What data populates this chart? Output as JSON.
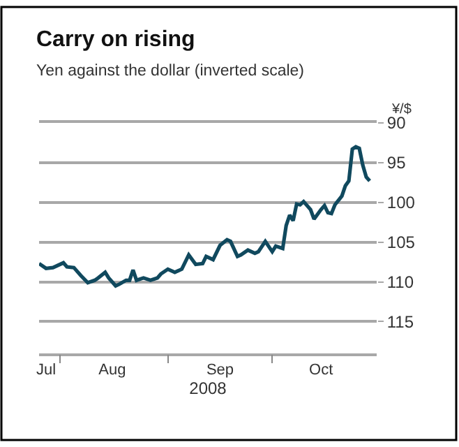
{
  "chart_data": {
    "type": "line",
    "title": "Carry on rising",
    "subtitle": "Yen against the dollar (inverted scale)",
    "xlabel": "2008",
    "ylabel": "¥/$",
    "x": [
      "2008-07-26",
      "2008-07-28",
      "2008-07-30",
      "2008-08-02",
      "2008-08-03",
      "2008-08-05",
      "2008-08-07",
      "2008-08-09",
      "2008-08-11",
      "2008-08-12",
      "2008-08-14",
      "2008-08-15",
      "2008-08-17",
      "2008-08-18",
      "2008-08-20",
      "2008-08-21",
      "2008-08-22",
      "2008-08-23",
      "2008-08-25",
      "2008-08-27",
      "2008-08-29",
      "2008-08-30",
      "2008-09-01",
      "2008-09-03",
      "2008-09-05",
      "2008-09-07",
      "2008-09-09",
      "2008-09-11",
      "2008-09-12",
      "2008-09-14",
      "2008-09-16",
      "2008-09-18",
      "2008-09-19",
      "2008-09-21",
      "2008-09-22",
      "2008-09-24",
      "2008-09-26",
      "2008-09-27",
      "2008-09-29",
      "2008-10-01",
      "2008-10-02",
      "2008-10-04",
      "2008-10-05",
      "2008-10-06",
      "2008-10-07",
      "2008-10-08",
      "2008-10-09",
      "2008-10-10",
      "2008-10-12",
      "2008-10-13",
      "2008-10-15",
      "2008-10-16",
      "2008-10-17",
      "2008-10-18",
      "2008-10-19",
      "2008-10-21",
      "2008-10-22",
      "2008-10-23",
      "2008-10-24",
      "2008-10-25",
      "2008-10-26",
      "2008-10-27",
      "2008-10-28",
      "2008-10-29"
    ],
    "series": [
      {
        "color": "#10495e",
        "values": [
          107.7,
          108.3,
          108.2,
          107.6,
          108.1,
          108.2,
          109.2,
          110.1,
          109.8,
          109.5,
          108.8,
          109.5,
          110.5,
          110.3,
          109.8,
          109.8,
          108.5,
          109.8,
          109.5,
          109.8,
          109.5,
          109.0,
          108.4,
          108.8,
          108.4,
          106.6,
          107.8,
          107.7,
          106.8,
          107.2,
          105.4,
          104.7,
          104.9,
          106.8,
          106.6,
          106.0,
          106.4,
          106.2,
          104.9,
          106.2,
          105.5,
          105.8,
          102.9,
          101.6,
          102.3,
          100.2,
          100.3,
          99.9,
          100.9,
          102.1,
          100.9,
          100.4,
          101.3,
          101.4,
          100.3,
          99.2,
          97.9,
          97.3,
          93.3,
          93.0,
          93.2,
          95.3,
          96.8,
          97.3
        ]
      }
    ],
    "xlim": [
      "2008-07-26",
      "2008-10-31"
    ],
    "xticks": [
      {
        "value": "2008-07-28",
        "label": "Jul"
      },
      {
        "value": "2008-08-01",
        "label": null
      },
      {
        "value": "2008-08-16",
        "label": "Aug"
      },
      {
        "value": "2008-09-01",
        "label": null
      },
      {
        "value": "2008-09-16",
        "label": "Sep"
      },
      {
        "value": "2008-10-01",
        "label": null
      },
      {
        "value": "2008-10-15",
        "label": "Oct"
      }
    ],
    "ylim": [
      119,
      90
    ],
    "yticks": [
      90,
      95,
      100,
      105,
      110,
      115
    ],
    "grid": "y",
    "marker": "none",
    "line_style": "solid"
  }
}
